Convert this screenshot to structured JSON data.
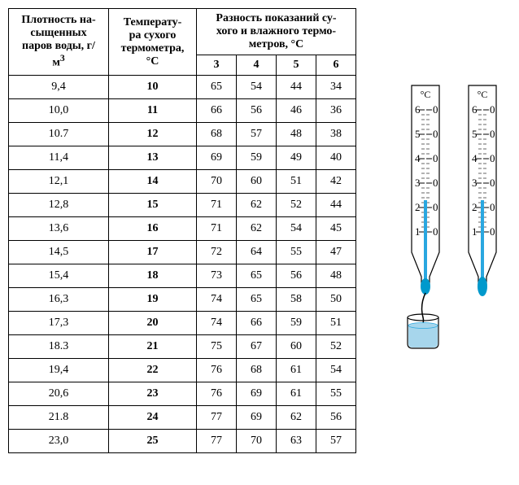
{
  "table": {
    "headers": {
      "density": "Плотность на-\nсыщенных\nпаров воды, г/\nм",
      "density_sup": "3",
      "temp": "Температу-\nра сухого\nтермометра,\n°С",
      "diff": "Разность показаний су-\nхого и влажного термо-\nметров, °С",
      "diff_cols": [
        "3",
        "4",
        "5",
        "6"
      ]
    },
    "rows": [
      {
        "d": "9,4",
        "t": "10",
        "v": [
          "65",
          "54",
          "44",
          "34"
        ]
      },
      {
        "d": "10,0",
        "t": "11",
        "v": [
          "66",
          "56",
          "46",
          "36"
        ]
      },
      {
        "d": "10.7",
        "t": "12",
        "v": [
          "68",
          "57",
          "48",
          "38"
        ]
      },
      {
        "d": "11,4",
        "t": "13",
        "v": [
          "69",
          "59",
          "49",
          "40"
        ]
      },
      {
        "d": "12,1",
        "t": "14",
        "v": [
          "70",
          "60",
          "51",
          "42"
        ]
      },
      {
        "d": "12,8",
        "t": "15",
        "v": [
          "71",
          "62",
          "52",
          "44"
        ]
      },
      {
        "d": "13,6",
        "t": "16",
        "v": [
          "71",
          "62",
          "54",
          "45"
        ]
      },
      {
        "d": "14,5",
        "t": "17",
        "v": [
          "72",
          "64",
          "55",
          "47"
        ]
      },
      {
        "d": "15,4",
        "t": "18",
        "v": [
          "73",
          "65",
          "56",
          "48"
        ]
      },
      {
        "d": "16,3",
        "t": "19",
        "v": [
          "74",
          "65",
          "58",
          "50"
        ]
      },
      {
        "d": "17,3",
        "t": "20",
        "v": [
          "74",
          "66",
          "59",
          "51"
        ]
      },
      {
        "d": "18.3",
        "t": "21",
        "v": [
          "75",
          "67",
          "60",
          "52"
        ]
      },
      {
        "d": "19,4",
        "t": "22",
        "v": [
          "76",
          "68",
          "61",
          "54"
        ]
      },
      {
        "d": "20,6",
        "t": "23",
        "v": [
          "76",
          "69",
          "61",
          "55"
        ]
      },
      {
        "d": "21.8",
        "t": "24",
        "v": [
          "77",
          "69",
          "62",
          "56"
        ]
      },
      {
        "d": "23,0",
        "t": "25",
        "v": [
          "77",
          "70",
          "63",
          "57"
        ]
      }
    ]
  },
  "thermo": {
    "unit_label": "°C",
    "scale_labels": [
      "6",
      "5",
      "4",
      "3",
      "2",
      "1"
    ],
    "scale_right": "0",
    "colors": {
      "outline": "#000000",
      "fluid": "#29a7e0",
      "fluid_fill": "#a7d6ec",
      "bulb_dark": "#0099cc",
      "background": "#ffffff"
    },
    "wet_level": 2.3,
    "dry_level": 2.3
  }
}
